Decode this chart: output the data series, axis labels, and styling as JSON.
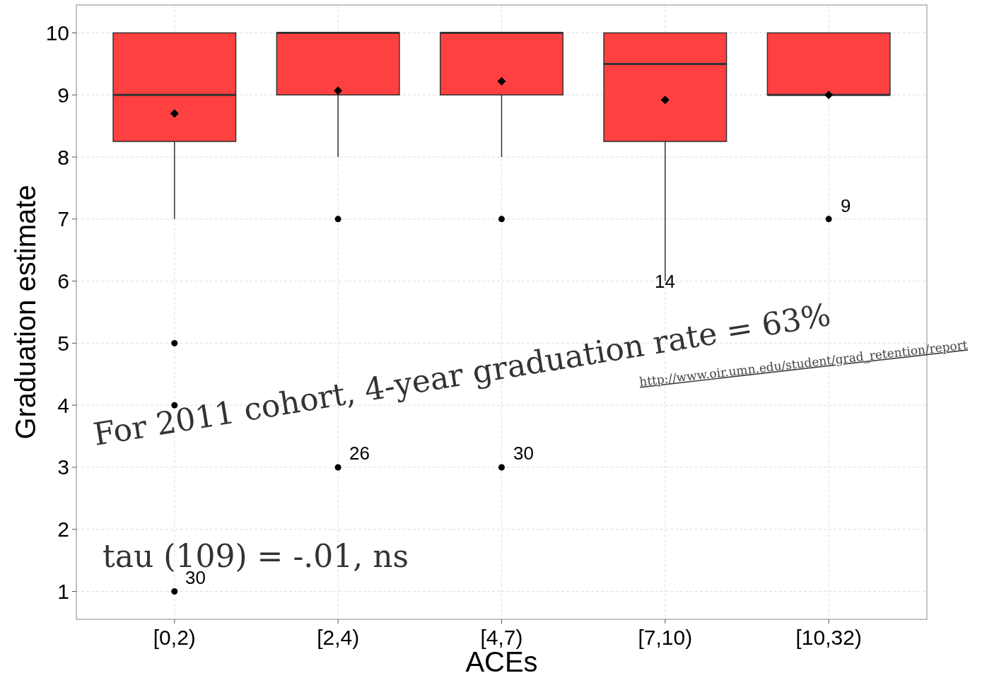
{
  "chart_data": {
    "type": "box",
    "xlabel": "ACEs",
    "ylabel": "Graduation estimate",
    "categories": [
      "[0,2)",
      "[2,4)",
      "[4,7)",
      "[7,10)",
      "[10,32)"
    ],
    "color": "#ff4040",
    "boxes": [
      {
        "low": 7,
        "q1": 8.25,
        "median": 9,
        "q3": 10,
        "high": 10,
        "mean": 8.7,
        "outliers": [
          5,
          4,
          1
        ]
      },
      {
        "low": 8,
        "q1": 9,
        "median": 10,
        "q3": 10,
        "high": 10,
        "mean": 9.07,
        "outliers": [
          7,
          3
        ]
      },
      {
        "low": 8,
        "q1": 9,
        "median": 10,
        "q3": 10,
        "high": 10,
        "mean": 9.22,
        "outliers": [
          7,
          3
        ]
      },
      {
        "low": 6,
        "q1": 8.25,
        "median": 9.5,
        "q3": 10,
        "high": 10,
        "mean": 8.92
      },
      {
        "low": 9,
        "q1": 9,
        "median": 9,
        "q3": 10,
        "high": 10,
        "mean": 9,
        "outliers": [
          7
        ]
      }
    ],
    "ylim": [
      0.55,
      10.45
    ],
    "yticks": [
      1,
      2,
      3,
      4,
      5,
      6,
      7,
      8,
      9,
      10
    ],
    "grid": true,
    "annotations": [
      "30",
      "26",
      "30",
      "14",
      "9",
      "For 2011 cohort, 4-year graduation rate = 63%",
      "http://www.oir.umn.edu/student/grad_retention/report",
      "tau (109) = -.01, ns"
    ]
  }
}
